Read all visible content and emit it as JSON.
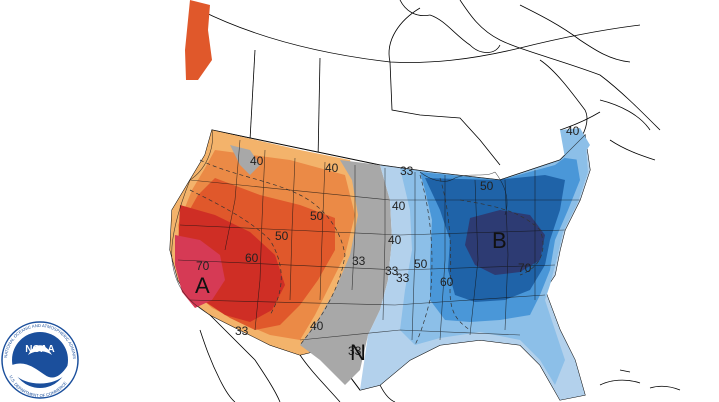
{
  "map": {
    "colors": {
      "land": "#ffffff",
      "border": "#000000",
      "state_line": "#111111",
      "above_70": "#d63a55",
      "above_60": "#cf2e25",
      "above_50": "#e0582b",
      "above_40": "#eb8a46",
      "above_33": "#f3b36b",
      "normal": "#a8a8a8",
      "below_33": "#b3d1ec",
      "below_40": "#8cbfe8",
      "below_50": "#4a97d8",
      "below_60": "#1f63a8",
      "below_70": "#2d3b73"
    },
    "contour_labels": [
      {
        "text": "40"
      },
      {
        "text": "50"
      },
      {
        "text": "60"
      },
      {
        "text": "70"
      },
      {
        "text": "50"
      },
      {
        "text": "40"
      },
      {
        "text": "33"
      },
      {
        "text": "33"
      },
      {
        "text": "40"
      },
      {
        "text": "33"
      },
      {
        "text": "33"
      },
      {
        "text": "40"
      },
      {
        "text": "50"
      },
      {
        "text": "60"
      },
      {
        "text": "70"
      },
      {
        "text": "50"
      },
      {
        "text": "40"
      },
      {
        "text": "33"
      },
      {
        "text": "33"
      },
      {
        "text": "40"
      }
    ],
    "center_labels": {
      "above": "A",
      "below": "B",
      "normal": "N"
    }
  },
  "logo": {
    "name": "NOAA",
    "ring_text": "NATIONAL OCEANIC AND ATMOSPHERIC ADMINISTRATION",
    "ring_text_bottom": "U.S. DEPARTMENT OF COMMERCE",
    "colors": {
      "ring": "#ffffff",
      "inner": "#1b4f9c",
      "wave": "#ffffff"
    }
  }
}
